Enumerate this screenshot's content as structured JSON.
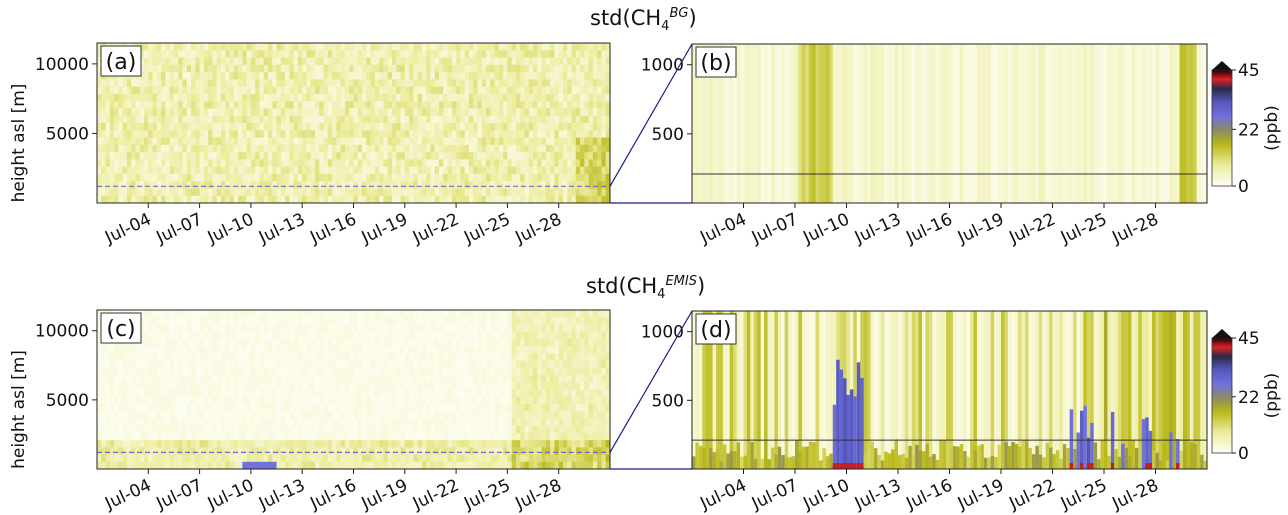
{
  "titles": {
    "top": {
      "prefix": "std(CH",
      "sub": "4",
      "sup": "BG",
      "suffix": ")"
    },
    "bottom": {
      "prefix": "std(CH",
      "sub": "4",
      "sup": "EMIS",
      "suffix": ")"
    }
  },
  "colorbar": {
    "ticks": [
      "0",
      "22",
      "45"
    ],
    "label": "(ppb)"
  },
  "chart_data": [
    {
      "type": "heatmap",
      "panel_label": "(a)",
      "variable": "std(CH4 BG)",
      "ylabel": "height asl [m]",
      "ylim": [
        0,
        11500
      ],
      "yticks": [
        5000,
        10000
      ],
      "ytick_labels": [
        "5000",
        "10000"
      ],
      "xlim_days": [
        1,
        31
      ],
      "xtick_labels": [
        "Jul-04",
        "Jul-07",
        "Jul-10",
        "Jul-13",
        "Jul-16",
        "Jul-19",
        "Jul-22",
        "Jul-25",
        "Jul-28"
      ],
      "reference_line_m": 1200,
      "value_range_ppb": [
        0,
        45
      ]
    },
    {
      "type": "heatmap",
      "panel_label": "(b)",
      "variable": "std(CH4 BG)",
      "ylim": [
        0,
        1150
      ],
      "yticks": [
        500,
        1000
      ],
      "ytick_labels": [
        "500",
        "1000"
      ],
      "xlim_days": [
        1,
        31
      ],
      "xtick_labels": [
        "Jul-04",
        "Jul-07",
        "Jul-10",
        "Jul-13",
        "Jul-16",
        "Jul-19",
        "Jul-22",
        "Jul-25",
        "Jul-28"
      ],
      "reference_line_m": 210,
      "value_range_ppb": [
        0,
        45
      ]
    },
    {
      "type": "heatmap",
      "panel_label": "(c)",
      "variable": "std(CH4 EMIS)",
      "ylabel": "height asl [m]",
      "ylim": [
        0,
        11500
      ],
      "yticks": [
        5000,
        10000
      ],
      "ytick_labels": [
        "5000",
        "10000"
      ],
      "xlim_days": [
        1,
        31
      ],
      "xtick_labels": [
        "Jul-04",
        "Jul-07",
        "Jul-10",
        "Jul-13",
        "Jul-16",
        "Jul-19",
        "Jul-22",
        "Jul-25",
        "Jul-28"
      ],
      "reference_line_m": 1200,
      "value_range_ppb": [
        0,
        45
      ]
    },
    {
      "type": "heatmap",
      "panel_label": "(d)",
      "variable": "std(CH4 EMIS)",
      "ylim": [
        0,
        1150
      ],
      "yticks": [
        500,
        1000
      ],
      "ytick_labels": [
        "500",
        "1000"
      ],
      "xlim_days": [
        1,
        31
      ],
      "xtick_labels": [
        "Jul-04",
        "Jul-07",
        "Jul-10",
        "Jul-13",
        "Jul-16",
        "Jul-19",
        "Jul-22",
        "Jul-25",
        "Jul-28"
      ],
      "reference_line_m": 210,
      "value_range_ppb": [
        0,
        45
      ]
    }
  ]
}
